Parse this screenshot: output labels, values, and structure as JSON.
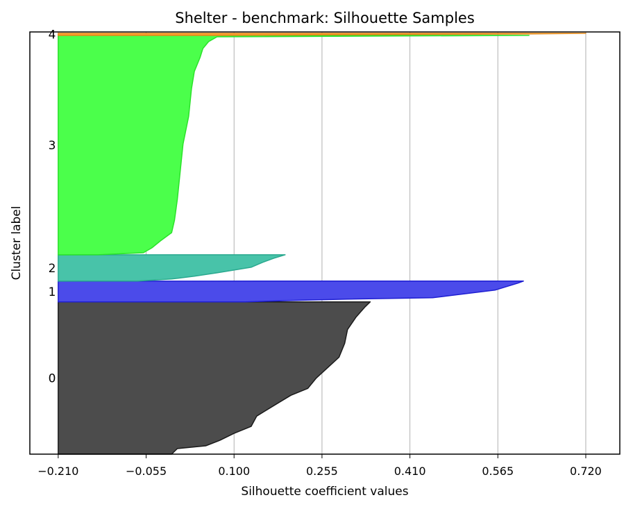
{
  "chart_data": {
    "type": "area",
    "title": "Shelter - benchmark: Silhouette Samples",
    "xlabel": "Silhouette coefficient values",
    "ylabel": "Cluster label",
    "xlim": [
      -0.26,
      0.78
    ],
    "xticks": [
      -0.21,
      -0.055,
      0.1,
      0.255,
      0.41,
      0.565,
      0.72
    ],
    "xtick_labels": [
      "−0.210",
      "−0.055",
      "0.100",
      "0.255",
      "0.410",
      "0.565",
      "0.720"
    ],
    "grid": "vertical",
    "baseline": -0.21,
    "ylim": [
      0,
      610
    ],
    "clusters": [
      {
        "label": "0",
        "color": "#4c4c4c",
        "edge": "#1a1a1a",
        "y_start": 0,
        "y_end": 220,
        "profile": [
          [
            0,
            -0.01
          ],
          [
            8,
            0.0
          ],
          [
            12,
            0.05
          ],
          [
            20,
            0.075
          ],
          [
            30,
            0.1
          ],
          [
            40,
            0.13
          ],
          [
            55,
            0.14
          ],
          [
            75,
            0.18
          ],
          [
            85,
            0.2
          ],
          [
            95,
            0.23
          ],
          [
            110,
            0.245
          ],
          [
            125,
            0.265
          ],
          [
            140,
            0.285
          ],
          [
            160,
            0.295
          ],
          [
            180,
            0.3
          ],
          [
            198,
            0.315
          ],
          [
            212,
            0.33
          ],
          [
            220,
            0.34
          ]
        ]
      },
      {
        "label": "1",
        "color": "#4b4bea",
        "edge": "#1f1fd2",
        "y_start": 220,
        "y_end": 250,
        "profile": [
          [
            0,
            0.12
          ],
          [
            2,
            0.2
          ],
          [
            4,
            0.3
          ],
          [
            6,
            0.45
          ],
          [
            9,
            0.48
          ],
          [
            13,
            0.52
          ],
          [
            17,
            0.56
          ],
          [
            22,
            0.58
          ],
          [
            27,
            0.6
          ],
          [
            30,
            0.61
          ]
        ]
      },
      {
        "label": "2",
        "color": "#48c3a9",
        "edge": "#2aa98f",
        "y_start": 250,
        "y_end": 288,
        "profile": [
          [
            0,
            -0.07
          ],
          [
            3,
            -0.01
          ],
          [
            7,
            0.03
          ],
          [
            12,
            0.07
          ],
          [
            20,
            0.13
          ],
          [
            27,
            0.15
          ],
          [
            33,
            0.17
          ],
          [
            38,
            0.19
          ]
        ]
      },
      {
        "label": "3",
        "color": "#4bff4b",
        "edge": "#2ae22a",
        "y_start": 288,
        "y_end": 605,
        "profile": [
          [
            0,
            -0.14
          ],
          [
            3,
            -0.06
          ],
          [
            10,
            -0.045
          ],
          [
            20,
            -0.03
          ],
          [
            32,
            -0.01
          ],
          [
            50,
            -0.005
          ],
          [
            80,
            0.0
          ],
          [
            120,
            0.005
          ],
          [
            160,
            0.01
          ],
          [
            200,
            0.02
          ],
          [
            240,
            0.025
          ],
          [
            265,
            0.03
          ],
          [
            285,
            0.04
          ],
          [
            298,
            0.045
          ],
          [
            308,
            0.055
          ],
          [
            315,
            0.07
          ],
          [
            317,
            0.62
          ]
        ]
      },
      {
        "label": "4",
        "color": "#ff9f33",
        "edge": "#e38a1a",
        "y_start": 605,
        "y_end": 608,
        "profile": [
          [
            0,
            0.07
          ],
          [
            1,
            0.3
          ],
          [
            2,
            0.6
          ],
          [
            3,
            0.72
          ]
        ]
      }
    ]
  }
}
